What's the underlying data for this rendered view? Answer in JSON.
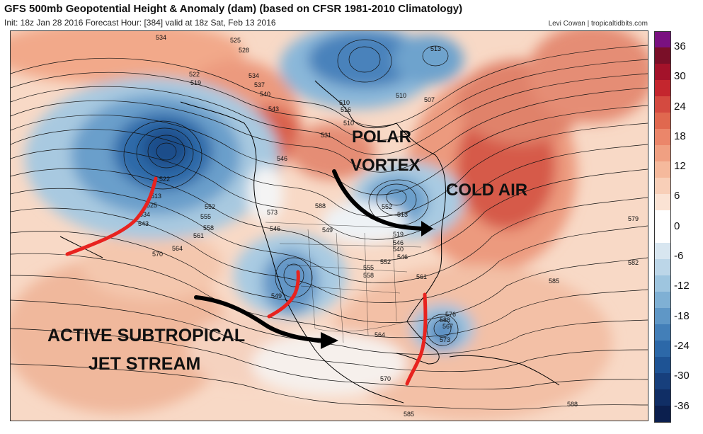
{
  "title": "GFS 500mb Geopotential Height & Anomaly (dam) (based on CFSR 1981-2010 Climatology)",
  "subtitle": "Init: 18z Jan 28 2016   Forecast Hour: [384]   valid at 18z Sat, Feb 13 2016",
  "credit": "Levi Cowan | tropicaltidbits.com",
  "colorbar": {
    "ticks": [
      "36",
      "30",
      "24",
      "18",
      "12",
      "6",
      "0",
      "-6",
      "-12",
      "-18",
      "-24",
      "-30",
      "-36"
    ]
  },
  "annotations": {
    "polar": "POLAR",
    "vortex": "VORTEX",
    "cold_air": "COLD AIR",
    "jet_line1": "ACTIVE SUBTROPICAL",
    "jet_line2": "JET STREAM"
  },
  "contour_labels": [
    "534",
    "525",
    "528",
    "522",
    "519",
    "534",
    "537",
    "540",
    "543",
    "546",
    "531",
    "516",
    "510",
    "510",
    "513",
    "507",
    "510",
    "522",
    "513",
    "525",
    "534",
    "543",
    "552",
    "555",
    "558",
    "561",
    "564",
    "570",
    "573",
    "546",
    "549",
    "549",
    "552",
    "513",
    "519",
    "546",
    "540",
    "546",
    "552",
    "555",
    "558",
    "561",
    "564",
    "579",
    "582",
    "585",
    "588",
    "573",
    "576",
    "567",
    "570",
    "585",
    "588",
    "588"
  ]
}
